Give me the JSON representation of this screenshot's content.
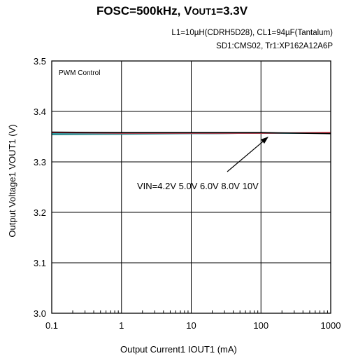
{
  "title": {
    "main": "FOSC=500kHz, V",
    "sub_script": "OUT1",
    "tail": "=3.3V"
  },
  "conditions": {
    "line1": "L1=10µH(CDRH5D28), CL1=94µF(Tantalum)",
    "line2": "SD1:CMS02, Tr1:XP162A12A6P"
  },
  "chart_data": {
    "type": "line",
    "title": "FOSC=500kHz, VOUT1=3.3V",
    "xlabel": "Output Current1  IOUT1 (mA)",
    "ylabel": "Output Voltage1  VOUT1 (V)",
    "xscale": "log",
    "xlim": [
      0.1,
      1000
    ],
    "ylim": [
      3.0,
      3.5
    ],
    "x_ticks": [
      "0.1",
      "1",
      "10",
      "100",
      "1000"
    ],
    "y_ticks": [
      "3.0",
      "3.1",
      "3.2",
      "3.3",
      "3.4",
      "3.5"
    ],
    "grid": true,
    "inset_label": "PWM Control",
    "annotation": "VIN=4.2V 5.0V 6.0V 8.0V 10V",
    "series": [
      {
        "name": "VIN=4.2V",
        "color": "#2f2f2f",
        "x": [
          0.1,
          1,
          10,
          100,
          1000
        ],
        "y": [
          3.357,
          3.356,
          3.356,
          3.357,
          3.357
        ]
      },
      {
        "name": "5.0V",
        "color": "#1f7a7a",
        "x": [
          0.1,
          1,
          10,
          100,
          1000
        ],
        "y": [
          3.354,
          3.355,
          3.356,
          3.357,
          3.357
        ]
      },
      {
        "name": "6.0V",
        "color": "#2ea0a8",
        "x": [
          0.1,
          1,
          10,
          100,
          1000
        ],
        "y": [
          3.356,
          3.356,
          3.356,
          3.357,
          3.357
        ]
      },
      {
        "name": "8.0V",
        "color": "#c42031",
        "x": [
          0.1,
          1,
          10,
          100,
          1000
        ],
        "y": [
          3.358,
          3.357,
          3.357,
          3.357,
          3.358
        ]
      },
      {
        "name": "10V",
        "color": "#000000",
        "x": [
          0.1,
          1,
          10,
          100,
          1000
        ],
        "y": [
          3.359,
          3.358,
          3.358,
          3.358,
          3.356
        ]
      }
    ]
  }
}
